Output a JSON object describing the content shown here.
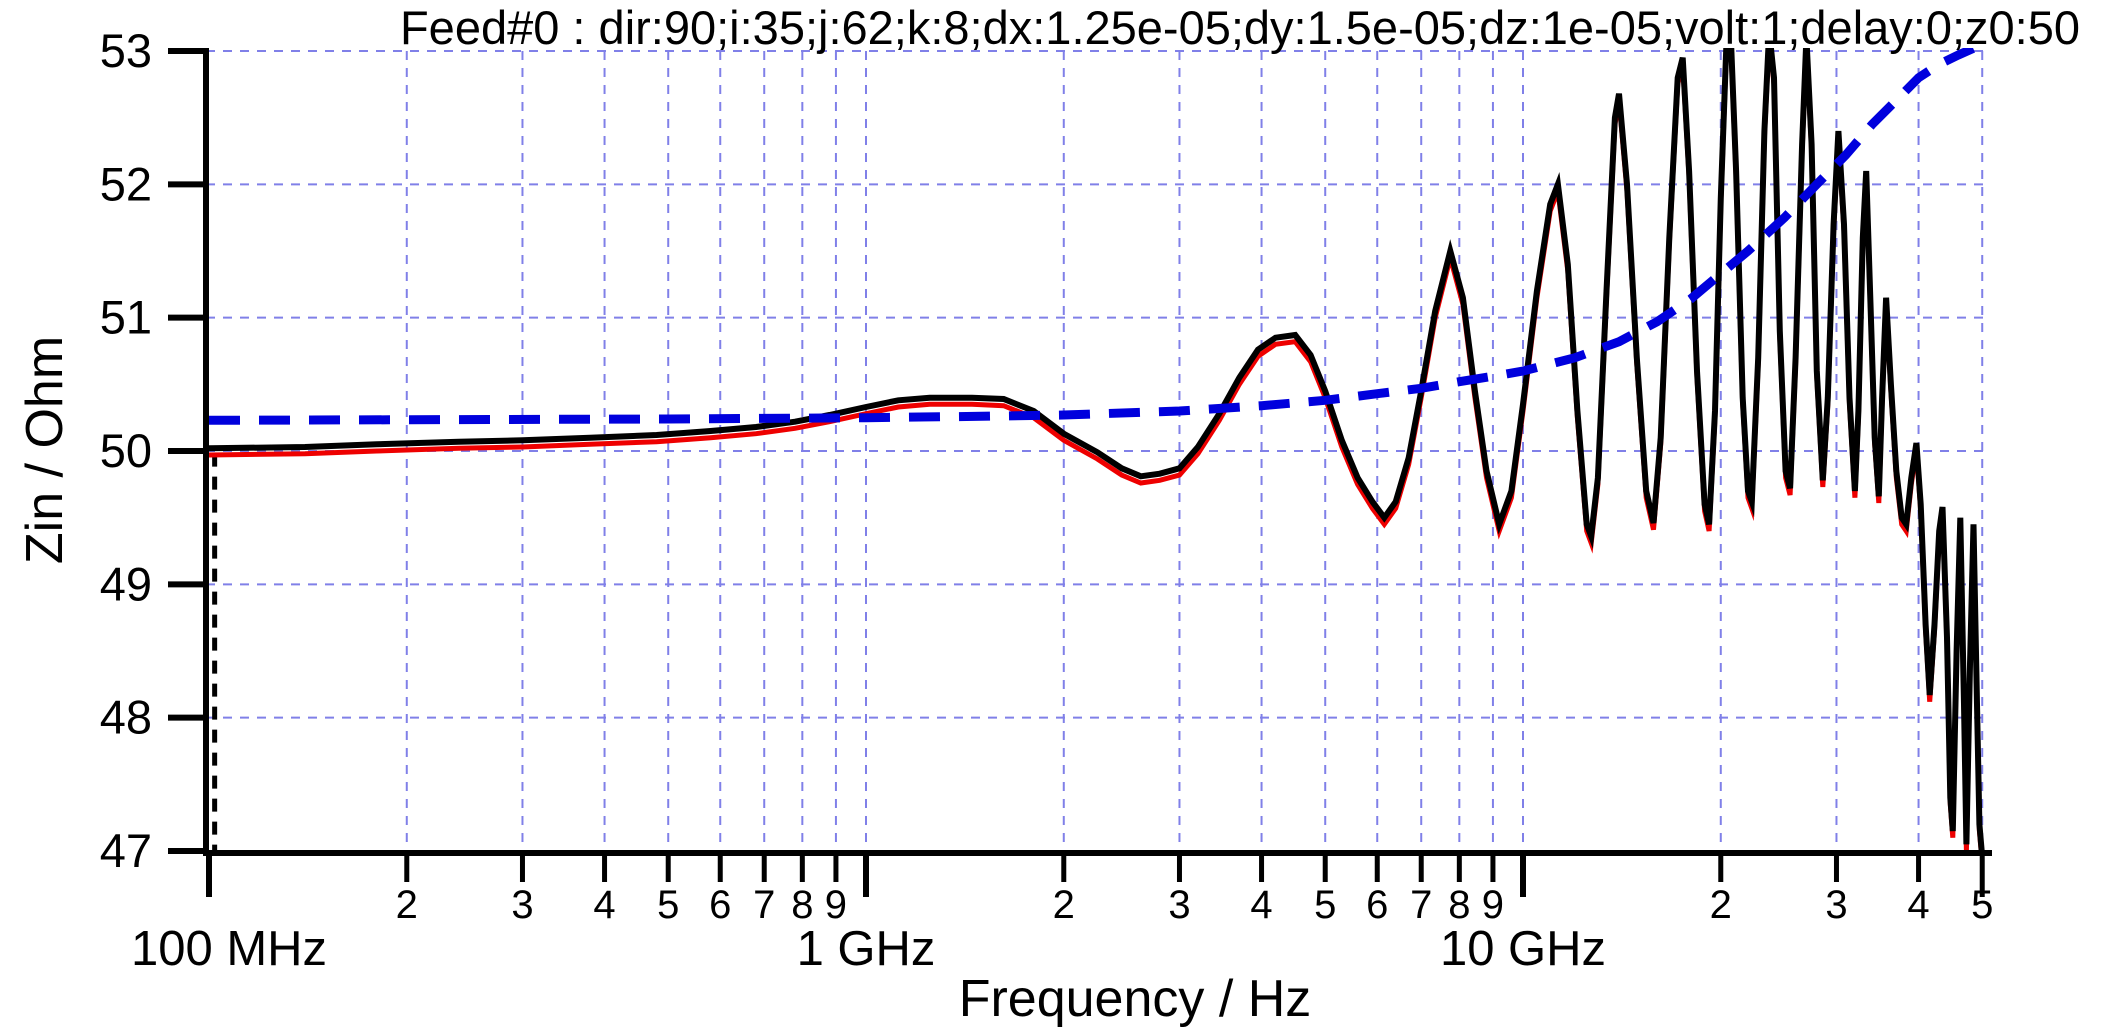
{
  "title": "Feed#0 : dir:90;i:35;j:62;k:8;dx:1.25e-05;dy:1.5e-05;dz:1e-05;volt:1;delay:0;z0:50",
  "colors": {
    "background": "#ffffff",
    "grid": "#8080e8",
    "axis": "#000000",
    "curve_black": "#000000",
    "curve_red": "#ee0000",
    "curve_blue": "#0000dd",
    "marker_line": "#000000"
  },
  "chart_data": {
    "type": "line",
    "title": "Feed#0 : dir:90;i:35;j:62;k:8;dx:1.25e-05;dy:1.5e-05;dz:1e-05;volt:1;delay:0;z0:50",
    "xlabel": "Frequency / Hz",
    "ylabel": "Zin / Ohm",
    "x_scale": "log",
    "x_unit": "GHz",
    "xlim": [
      0.1,
      50
    ],
    "ylim": [
      47,
      53
    ],
    "grid": true,
    "legend_position": "none",
    "y_ticks": [
      47,
      48,
      49,
      50,
      51,
      52,
      53
    ],
    "x_major_ticks": [
      {
        "f": 0.1,
        "label": "100 MHz"
      },
      {
        "f": 1,
        "label": "1 GHz"
      },
      {
        "f": 10,
        "label": "10 GHz"
      }
    ],
    "x_minor_ticks": [
      {
        "f": 0.2,
        "label": "2"
      },
      {
        "f": 0.3,
        "label": "3"
      },
      {
        "f": 0.4,
        "label": "4"
      },
      {
        "f": 0.5,
        "label": "5"
      },
      {
        "f": 0.6,
        "label": "6"
      },
      {
        "f": 0.7,
        "label": "7"
      },
      {
        "f": 0.8,
        "label": "8"
      },
      {
        "f": 0.9,
        "label": "9"
      },
      {
        "f": 2,
        "label": "2"
      },
      {
        "f": 3,
        "label": "3"
      },
      {
        "f": 4,
        "label": "4"
      },
      {
        "f": 5,
        "label": "5"
      },
      {
        "f": 6,
        "label": "6"
      },
      {
        "f": 7,
        "label": "7"
      },
      {
        "f": 8,
        "label": "8"
      },
      {
        "f": 9,
        "label": "9"
      },
      {
        "f": 20,
        "label": "2"
      },
      {
        "f": 30,
        "label": "3"
      },
      {
        "f": 40,
        "label": "4"
      },
      {
        "f": 50,
        "label": "5"
      }
    ],
    "marker_line": {
      "x_ghz": 0.102,
      "y_from": 47.0,
      "y_to": 49.98,
      "style": "dashed",
      "color": "#000000"
    },
    "series": [
      {
        "name": "red-underlay",
        "color": "#ee0000",
        "style": "solid",
        "width": 5,
        "derived_from": "black-solid",
        "value_offset": -0.05,
        "points": []
      },
      {
        "name": "black-solid",
        "color": "#000000",
        "style": "solid",
        "width": 6,
        "points": [
          [
            0.1,
            50.02
          ],
          [
            0.14,
            50.03
          ],
          [
            0.18,
            50.05
          ],
          [
            0.24,
            50.07
          ],
          [
            0.3,
            50.08
          ],
          [
            0.38,
            50.1
          ],
          [
            0.48,
            50.12
          ],
          [
            0.58,
            50.15
          ],
          [
            0.68,
            50.18
          ],
          [
            0.78,
            50.22
          ],
          [
            0.88,
            50.27
          ],
          [
            1.0,
            50.33
          ],
          [
            1.12,
            50.38
          ],
          [
            1.25,
            50.4
          ],
          [
            1.45,
            50.4
          ],
          [
            1.62,
            50.39
          ],
          [
            1.8,
            50.3
          ],
          [
            2.0,
            50.13
          ],
          [
            2.25,
            49.99
          ],
          [
            2.45,
            49.87
          ],
          [
            2.62,
            49.81
          ],
          [
            2.8,
            49.83
          ],
          [
            3.0,
            49.87
          ],
          [
            3.2,
            50.03
          ],
          [
            3.45,
            50.28
          ],
          [
            3.7,
            50.55
          ],
          [
            3.95,
            50.76
          ],
          [
            4.2,
            50.85
          ],
          [
            4.5,
            50.87
          ],
          [
            4.75,
            50.72
          ],
          [
            5.0,
            50.45
          ],
          [
            5.3,
            50.08
          ],
          [
            5.6,
            49.8
          ],
          [
            5.9,
            49.62
          ],
          [
            6.15,
            49.5
          ],
          [
            6.4,
            49.62
          ],
          [
            6.7,
            49.95
          ],
          [
            7.0,
            50.45
          ],
          [
            7.35,
            51.05
          ],
          [
            7.75,
            51.5
          ],
          [
            8.1,
            51.15
          ],
          [
            8.45,
            50.45
          ],
          [
            8.8,
            49.85
          ],
          [
            9.2,
            49.45
          ],
          [
            9.6,
            49.7
          ],
          [
            10.0,
            50.35
          ],
          [
            10.5,
            51.2
          ],
          [
            11.0,
            51.85
          ],
          [
            11.3,
            52.0
          ],
          [
            11.7,
            51.4
          ],
          [
            12.1,
            50.3
          ],
          [
            12.5,
            49.45
          ],
          [
            12.7,
            49.36
          ],
          [
            13.0,
            49.8
          ],
          [
            13.4,
            51.2
          ],
          [
            13.8,
            52.5
          ],
          [
            14.0,
            52.68
          ],
          [
            14.4,
            52.0
          ],
          [
            14.9,
            50.7
          ],
          [
            15.4,
            49.7
          ],
          [
            15.8,
            49.46
          ],
          [
            16.2,
            50.1
          ],
          [
            16.7,
            51.6
          ],
          [
            17.2,
            52.8
          ],
          [
            17.5,
            52.95
          ],
          [
            17.9,
            52.1
          ],
          [
            18.4,
            50.6
          ],
          [
            18.9,
            49.6
          ],
          [
            19.2,
            49.45
          ],
          [
            19.6,
            50.3
          ],
          [
            20.0,
            51.9
          ],
          [
            20.4,
            53.05
          ],
          [
            20.7,
            53.15
          ],
          [
            21.1,
            52.1
          ],
          [
            21.6,
            50.4
          ],
          [
            22.0,
            49.7
          ],
          [
            22.3,
            49.62
          ],
          [
            22.8,
            50.7
          ],
          [
            23.3,
            52.4
          ],
          [
            23.7,
            53.15
          ],
          [
            24.1,
            52.8
          ],
          [
            24.6,
            50.9
          ],
          [
            25.1,
            49.85
          ],
          [
            25.5,
            49.72
          ],
          [
            26.0,
            50.7
          ],
          [
            26.6,
            52.3
          ],
          [
            27.0,
            53.1
          ],
          [
            27.5,
            52.3
          ],
          [
            28.0,
            50.6
          ],
          [
            28.6,
            49.78
          ],
          [
            29.1,
            50.4
          ],
          [
            29.7,
            51.7
          ],
          [
            30.2,
            52.4
          ],
          [
            30.8,
            51.7
          ],
          [
            31.4,
            50.4
          ],
          [
            32.0,
            49.7
          ],
          [
            32.4,
            50.3
          ],
          [
            32.9,
            51.6
          ],
          [
            33.3,
            52.1
          ],
          [
            33.8,
            51.1
          ],
          [
            34.3,
            50.1
          ],
          [
            34.8,
            49.66
          ],
          [
            35.2,
            50.4
          ],
          [
            35.7,
            51.15
          ],
          [
            36.3,
            50.5
          ],
          [
            37.0,
            49.85
          ],
          [
            37.7,
            49.5
          ],
          [
            38.3,
            49.45
          ],
          [
            39.0,
            49.8
          ],
          [
            39.7,
            50.06
          ],
          [
            40.3,
            49.6
          ],
          [
            41.0,
            48.7
          ],
          [
            41.6,
            48.17
          ],
          [
            42.3,
            48.7
          ],
          [
            43.0,
            49.4
          ],
          [
            43.5,
            49.58
          ],
          [
            44.2,
            48.6
          ],
          [
            44.7,
            47.4
          ],
          [
            45.1,
            47.15
          ],
          [
            45.7,
            48.5
          ],
          [
            46.3,
            49.5
          ],
          [
            46.9,
            48.1
          ],
          [
            47.3,
            47.05
          ],
          [
            47.9,
            48.4
          ],
          [
            48.5,
            49.45
          ],
          [
            49.1,
            48.1
          ],
          [
            49.5,
            47.2
          ],
          [
            49.9,
            47.0
          ]
        ]
      },
      {
        "name": "blue-dashed",
        "color": "#0000dd",
        "style": "dashed",
        "width": 9,
        "points": [
          [
            0.1,
            50.23
          ],
          [
            0.5,
            50.24
          ],
          [
            1,
            50.25
          ],
          [
            1.5,
            50.26
          ],
          [
            2,
            50.27
          ],
          [
            3,
            50.3
          ],
          [
            4,
            50.34
          ],
          [
            5,
            50.38
          ],
          [
            6,
            50.43
          ],
          [
            7,
            50.47
          ],
          [
            8,
            50.52
          ],
          [
            9,
            50.56
          ],
          [
            10,
            50.6
          ],
          [
            12,
            50.7
          ],
          [
            14,
            50.82
          ],
          [
            16,
            50.97
          ],
          [
            18,
            51.14
          ],
          [
            20,
            51.33
          ],
          [
            22,
            51.5
          ],
          [
            25,
            51.75
          ],
          [
            28,
            52.0
          ],
          [
            31,
            52.22
          ],
          [
            34,
            52.45
          ],
          [
            37,
            52.63
          ],
          [
            40,
            52.8
          ],
          [
            43,
            52.9
          ],
          [
            46,
            52.97
          ],
          [
            50,
            53.05
          ]
        ]
      }
    ]
  }
}
